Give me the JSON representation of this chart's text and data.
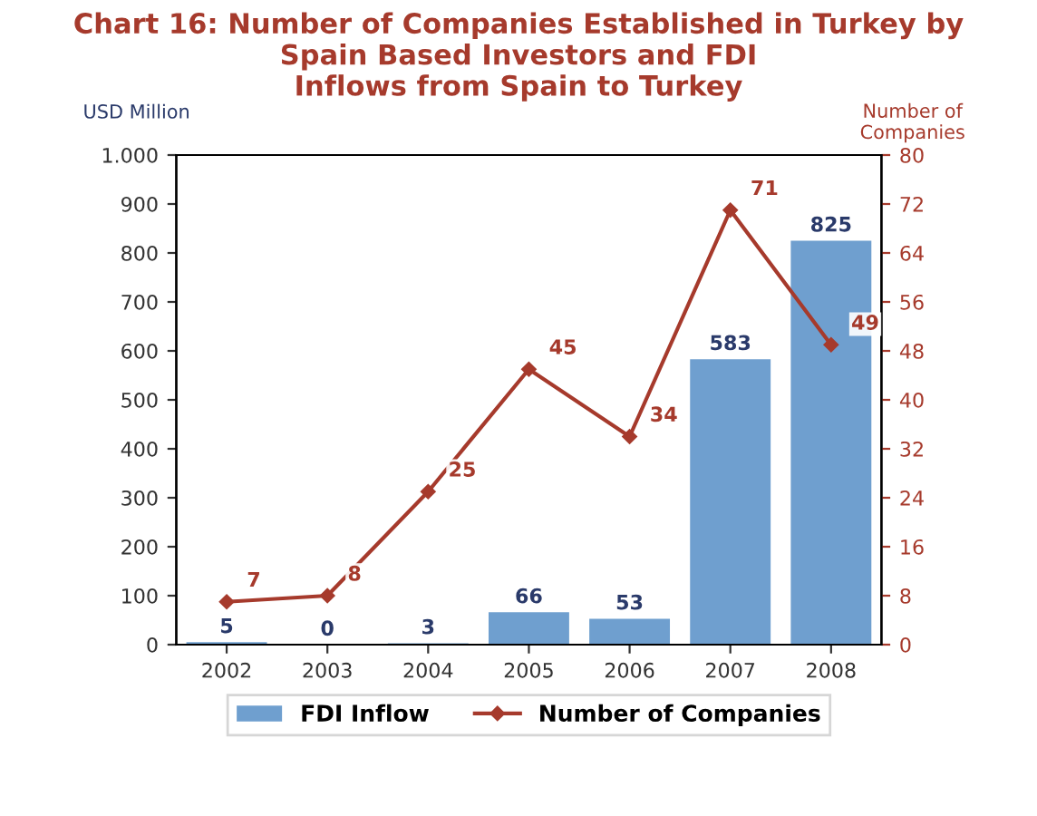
{
  "chart_data": {
    "type": "bar",
    "title": "Chart 16: Number of Companies Established in Turkey by\nSpain Based Investors and FDI\nInflows from Spain to Turkey",
    "ylabel": "USD Million",
    "y2label": "Number of\nCompanies",
    "categories": [
      "2002",
      "2003",
      "2004",
      "2005",
      "2006",
      "2007",
      "2008"
    ],
    "series": [
      {
        "name": "FDI Inflow",
        "color": "#6f9fcf",
        "values": [
          5,
          0,
          3,
          66,
          53,
          583,
          825
        ]
      },
      {
        "name": "Number of Companies",
        "type": "line",
        "axis": "y2",
        "color": "#a63a2c",
        "marker": "diamond",
        "values": [
          7,
          8,
          25,
          45,
          34,
          71,
          49
        ]
      }
    ],
    "ylim": [
      0,
      1000
    ],
    "yticks": [
      0,
      100,
      200,
      300,
      400,
      500,
      600,
      700,
      800,
      900,
      {
        "value": 1000,
        "label": "1.000"
      }
    ],
    "y2lim": [
      0,
      80
    ],
    "y2ticks": [
      0,
      8,
      16,
      24,
      32,
      40,
      48,
      56,
      64,
      72,
      80
    ],
    "data_labels": true,
    "grid": false,
    "legend": "bottom"
  }
}
